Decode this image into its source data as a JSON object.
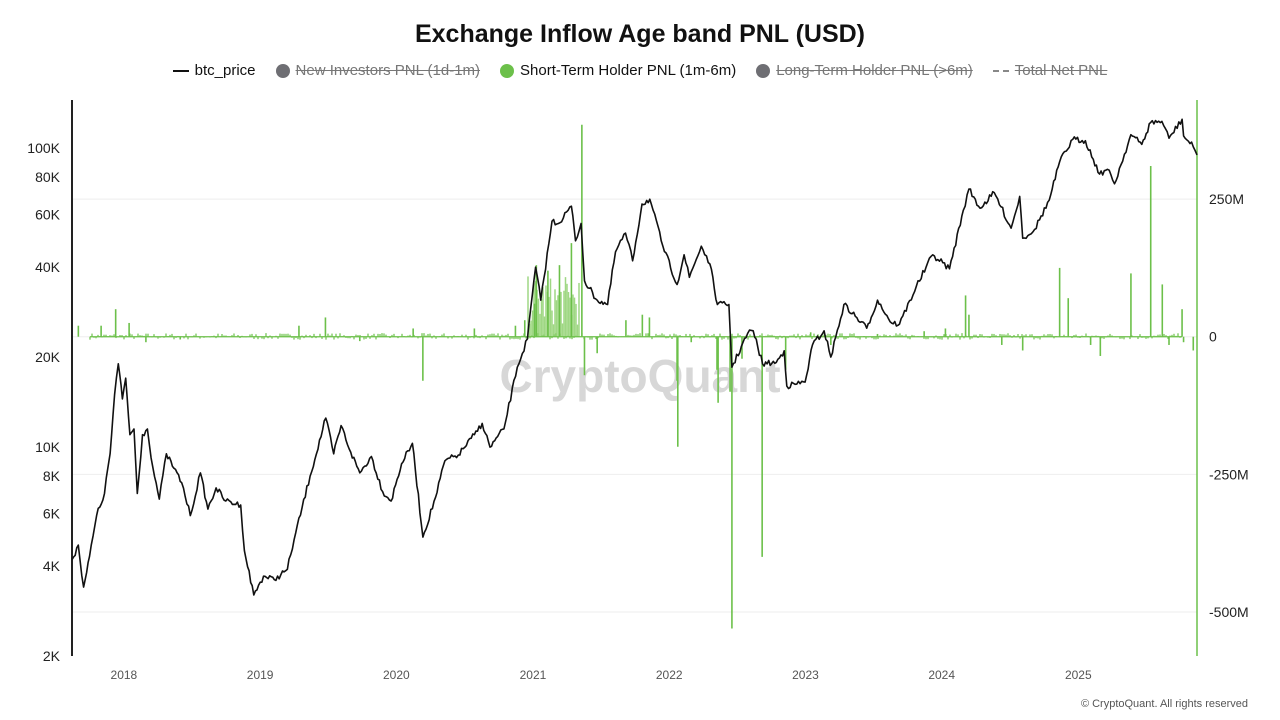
{
  "title": "Exchange Inflow Age band PNL (USD)",
  "legend": [
    {
      "label": "btc_price",
      "symbol": "line",
      "color": "#111111",
      "active": true
    },
    {
      "label": "New Investors PNL (1d-1m)",
      "symbol": "dot",
      "color": "#6e6e73",
      "active": false
    },
    {
      "label": "Short-Term Holder PNL (1m-6m)",
      "symbol": "dot",
      "color": "#6cc04a",
      "active": true
    },
    {
      "label": "Long-Term Holder PNL (>6m)",
      "symbol": "dot",
      "color": "#6e6e73",
      "active": false
    },
    {
      "label": "Total Net PNL",
      "symbol": "dash",
      "color": "#888888",
      "active": false
    }
  ],
  "watermark": "CryptoQuant",
  "footer": "© CryptoQuant. All rights reserved",
  "colors": {
    "price": "#111111",
    "pnl": "#6cc04a",
    "pnl_fill": "#8fd16f",
    "grid": "#eeeeee",
    "axis": "#222222",
    "right_axis": "#6cc04a"
  },
  "chart_data": {
    "type": "line",
    "x_axis": {
      "ticks": [
        "2018",
        "2019",
        "2020",
        "2021",
        "2022",
        "2023",
        "2024",
        "2025"
      ],
      "range": [
        "2017-08-15",
        "2025-11-15"
      ]
    },
    "y_left": {
      "scale": "log",
      "ticks": [
        2000,
        4000,
        6000,
        8000,
        10000,
        20000,
        40000,
        60000,
        80000,
        100000
      ],
      "tick_labels": [
        "2K",
        "4K",
        "6K",
        "8K",
        "10K",
        "20K",
        "40K",
        "60K",
        "80K",
        "100K"
      ],
      "range": [
        2000,
        145000
      ]
    },
    "y_right": {
      "scale": "linear",
      "ticks": [
        250000000,
        0,
        -250000000,
        -500000000
      ],
      "tick_labels": [
        "250M",
        "0",
        "-250M",
        "-500M"
      ],
      "range": [
        -580000000,
        430000000
      ]
    },
    "series": [
      {
        "name": "btc_price",
        "axis": "left",
        "points": [
          [
            "2017-08-15",
            4200
          ],
          [
            "2017-09-01",
            4700
          ],
          [
            "2017-09-15",
            3400
          ],
          [
            "2017-10-01",
            4300
          ],
          [
            "2017-10-20",
            5900
          ],
          [
            "2017-11-10",
            7000
          ],
          [
            "2017-11-25",
            9500
          ],
          [
            "2017-12-07",
            15000
          ],
          [
            "2017-12-17",
            19000
          ],
          [
            "2017-12-28",
            14500
          ],
          [
            "2018-01-06",
            17000
          ],
          [
            "2018-01-17",
            11000
          ],
          [
            "2018-01-28",
            11500
          ],
          [
            "2018-02-06",
            7000
          ],
          [
            "2018-02-20",
            11000
          ],
          [
            "2018-03-05",
            11500
          ],
          [
            "2018-03-20",
            8500
          ],
          [
            "2018-04-06",
            6700
          ],
          [
            "2018-04-25",
            9500
          ],
          [
            "2018-05-15",
            8500
          ],
          [
            "2018-06-05",
            7600
          ],
          [
            "2018-06-28",
            5900
          ],
          [
            "2018-07-25",
            8200
          ],
          [
            "2018-08-14",
            6200
          ],
          [
            "2018-09-05",
            7300
          ],
          [
            "2018-10-01",
            6600
          ],
          [
            "2018-11-10",
            6400
          ],
          [
            "2018-11-20",
            4500
          ],
          [
            "2018-12-15",
            3200
          ],
          [
            "2019-01-10",
            3700
          ],
          [
            "2019-02-08",
            3600
          ],
          [
            "2019-03-15",
            3900
          ],
          [
            "2019-04-02",
            4900
          ],
          [
            "2019-05-15",
            8000
          ],
          [
            "2019-06-26",
            12500
          ],
          [
            "2019-07-17",
            9500
          ],
          [
            "2019-08-06",
            11800
          ],
          [
            "2019-09-01",
            9600
          ],
          [
            "2019-09-25",
            8200
          ],
          [
            "2019-10-26",
            9300
          ],
          [
            "2019-11-25",
            7100
          ],
          [
            "2019-12-18",
            6600
          ],
          [
            "2020-01-15",
            8800
          ],
          [
            "2020-02-13",
            10300
          ],
          [
            "2020-03-12",
            5000
          ],
          [
            "2020-04-15",
            6800
          ],
          [
            "2020-05-10",
            9000
          ],
          [
            "2020-06-15",
            9400
          ],
          [
            "2020-07-28",
            11000
          ],
          [
            "2020-08-18",
            12000
          ],
          [
            "2020-09-08",
            10000
          ],
          [
            "2020-10-15",
            11500
          ],
          [
            "2020-11-20",
            18500
          ],
          [
            "2020-12-17",
            23000
          ],
          [
            "2021-01-08",
            40000
          ],
          [
            "2021-01-22",
            31000
          ],
          [
            "2021-02-21",
            57000
          ],
          [
            "2021-03-10",
            56000
          ],
          [
            "2021-04-14",
            64000
          ],
          [
            "2021-04-25",
            49000
          ],
          [
            "2021-05-10",
            56000
          ],
          [
            "2021-05-19",
            36000
          ],
          [
            "2021-06-22",
            31000
          ],
          [
            "2021-07-20",
            30000
          ],
          [
            "2021-08-10",
            45000
          ],
          [
            "2021-09-06",
            52000
          ],
          [
            "2021-09-25",
            42000
          ],
          [
            "2021-10-20",
            65000
          ],
          [
            "2021-11-10",
            67500
          ],
          [
            "2021-12-15",
            47000
          ],
          [
            "2022-01-22",
            35000
          ],
          [
            "2022-02-10",
            44000
          ],
          [
            "2022-02-24",
            37000
          ],
          [
            "2022-03-28",
            47000
          ],
          [
            "2022-04-20",
            41000
          ],
          [
            "2022-05-10",
            30000
          ],
          [
            "2022-06-10",
            30000
          ],
          [
            "2022-06-18",
            18500
          ],
          [
            "2022-07-30",
            24000
          ],
          [
            "2022-08-14",
            24500
          ],
          [
            "2022-09-08",
            19000
          ],
          [
            "2022-10-15",
            19200
          ],
          [
            "2022-11-05",
            21000
          ],
          [
            "2022-11-12",
            16000
          ],
          [
            "2022-12-31",
            16500
          ],
          [
            "2023-01-20",
            22000
          ],
          [
            "2023-02-20",
            24500
          ],
          [
            "2023-03-10",
            20000
          ],
          [
            "2023-04-14",
            30000
          ],
          [
            "2023-06-14",
            25000
          ],
          [
            "2023-07-13",
            31000
          ],
          [
            "2023-08-20",
            26000
          ],
          [
            "2023-09-10",
            25800
          ],
          [
            "2023-10-25",
            34500
          ],
          [
            "2023-12-08",
            44000
          ],
          [
            "2024-01-22",
            39500
          ],
          [
            "2024-02-28",
            62000
          ],
          [
            "2024-03-14",
            73000
          ],
          [
            "2024-04-13",
            63000
          ],
          [
            "2024-05-21",
            71000
          ],
          [
            "2024-07-05",
            54000
          ],
          [
            "2024-07-28",
            69000
          ],
          [
            "2024-08-05",
            50000
          ],
          [
            "2024-09-06",
            53500
          ],
          [
            "2024-10-15",
            67000
          ],
          [
            "2024-11-12",
            90000
          ],
          [
            "2024-12-17",
            107000
          ],
          [
            "2025-01-20",
            106000
          ],
          [
            "2025-02-27",
            82000
          ],
          [
            "2025-03-20",
            85000
          ],
          [
            "2025-04-08",
            76000
          ],
          [
            "2025-05-22",
            111000
          ],
          [
            "2025-06-20",
            103000
          ],
          [
            "2025-07-14",
            122000
          ],
          [
            "2025-08-13",
            123000
          ],
          [
            "2025-09-01",
            108000
          ],
          [
            "2025-10-06",
            125000
          ],
          [
            "2025-10-10",
            110000
          ],
          [
            "2025-11-05",
            101000
          ],
          [
            "2025-11-15",
            95000
          ]
        ]
      },
      {
        "name": "Short-Term Holder PNL (1m-6m)",
        "axis": "right",
        "type": "bar",
        "points": [
          [
            "2017-09-01",
            20000000
          ],
          [
            "2017-11-01",
            20000000
          ],
          [
            "2017-12-10",
            50000000
          ],
          [
            "2018-01-15",
            25000000
          ],
          [
            "2018-03-01",
            -10000000
          ],
          [
            "2018-06-01",
            -5000000
          ],
          [
            "2019-04-15",
            20000000
          ],
          [
            "2019-06-25",
            35000000
          ],
          [
            "2019-09-25",
            -8000000
          ],
          [
            "2020-02-15",
            15000000
          ],
          [
            "2020-03-12",
            -80000000
          ],
          [
            "2020-07-28",
            15000000
          ],
          [
            "2020-11-15",
            20000000
          ],
          [
            "2020-12-10",
            30000000
          ],
          [
            "2021-01-05",
            60000000
          ],
          [
            "2021-01-10",
            130000000
          ],
          [
            "2021-02-10",
            120000000
          ],
          [
            "2021-03-13",
            130000000
          ],
          [
            "2021-04-14",
            170000000
          ],
          [
            "2021-05-12",
            385000000
          ],
          [
            "2021-05-19",
            -70000000
          ],
          [
            "2021-06-22",
            -30000000
          ],
          [
            "2021-09-07",
            30000000
          ],
          [
            "2021-10-21",
            40000000
          ],
          [
            "2021-11-09",
            35000000
          ],
          [
            "2022-01-22",
            -80000000
          ],
          [
            "2022-01-24",
            -200000000
          ],
          [
            "2022-03-01",
            -10000000
          ],
          [
            "2022-05-09",
            -60000000
          ],
          [
            "2022-05-12",
            -120000000
          ],
          [
            "2022-06-13",
            -100000000
          ],
          [
            "2022-06-18",
            -530000000
          ],
          [
            "2022-07-15",
            -40000000
          ],
          [
            "2022-09-07",
            -400000000
          ],
          [
            "2022-11-09",
            -60000000
          ],
          [
            "2023-01-15",
            8000000
          ],
          [
            "2023-03-10",
            -15000000
          ],
          [
            "2023-07-13",
            5000000
          ],
          [
            "2023-11-15",
            10000000
          ],
          [
            "2024-01-11",
            15000000
          ],
          [
            "2024-03-05",
            75000000
          ],
          [
            "2024-03-14",
            40000000
          ],
          [
            "2024-06-10",
            -15000000
          ],
          [
            "2024-08-05",
            -25000000
          ],
          [
            "2024-11-12",
            125000000
          ],
          [
            "2024-12-05",
            70000000
          ],
          [
            "2025-02-03",
            -15000000
          ],
          [
            "2025-03-01",
            -35000000
          ],
          [
            "2025-05-22",
            115000000
          ],
          [
            "2025-07-14",
            310000000
          ],
          [
            "2025-08-14",
            95000000
          ],
          [
            "2025-09-01",
            -15000000
          ],
          [
            "2025-10-06",
            50000000
          ],
          [
            "2025-10-10",
            -10000000
          ],
          [
            "2025-11-05",
            -25000000
          ]
        ]
      }
    ]
  }
}
